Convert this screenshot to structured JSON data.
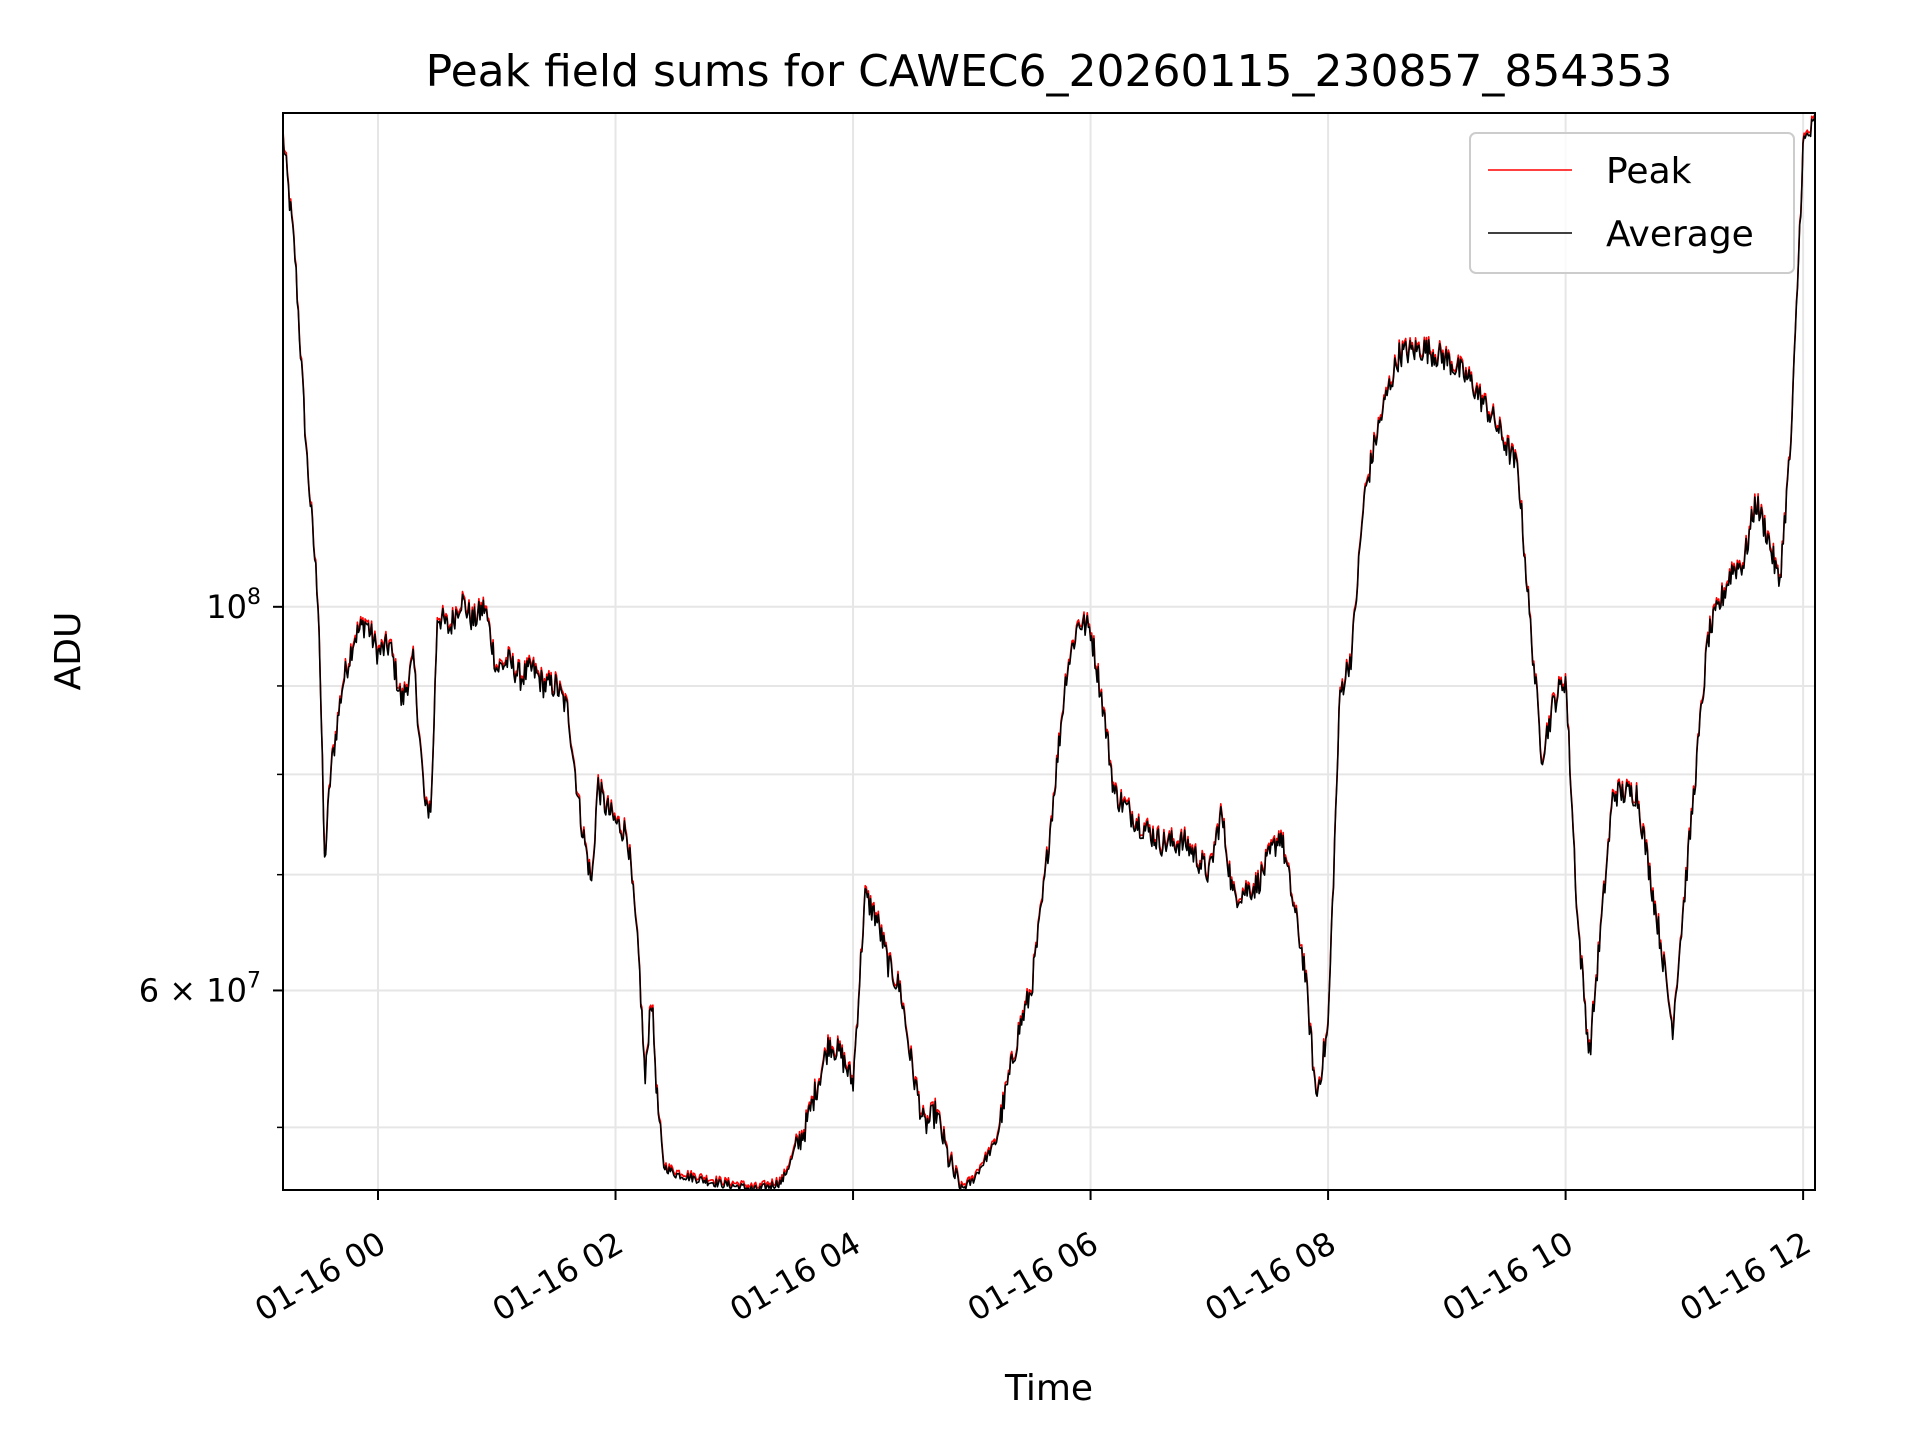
{
  "chart_data": {
    "type": "line",
    "title": "Peak field sums for CAWEC6_20260115_230857_854353",
    "xlabel": "Time",
    "ylabel": "ADU",
    "yscale": "log",
    "ylim": [
      46000000,
      193000000
    ],
    "xlim_hours": [
      -0.8,
      12.1
    ],
    "grid": true,
    "legend_position": "top-right",
    "x_ticks": [
      {
        "hour": 0,
        "label": "01-16 00"
      },
      {
        "hour": 2,
        "label": "01-16 02"
      },
      {
        "hour": 4,
        "label": "01-16 04"
      },
      {
        "hour": 6,
        "label": "01-16 06"
      },
      {
        "hour": 8,
        "label": "01-16 08"
      },
      {
        "hour": 10,
        "label": "01-16 10"
      },
      {
        "hour": 12,
        "label": "01-16 12"
      }
    ],
    "y_major_ticks": [
      {
        "value": 100000000,
        "base": "10",
        "exp": "8"
      },
      {
        "value": 60000000,
        "base": "6 × 10",
        "exp": "7"
      }
    ],
    "y_minor_ticks": [
      50000000,
      70000000,
      80000000,
      90000000
    ],
    "series": [
      {
        "name": "Peak",
        "color": "#ff0000",
        "offset_fraction": 0.004
      },
      {
        "name": "Average",
        "color": "#000000",
        "offset_fraction": 0.0
      }
    ],
    "x_hours": [
      -0.8,
      -0.7,
      -0.6,
      -0.5,
      -0.45,
      -0.4,
      -0.3,
      -0.2,
      -0.1,
      0.0,
      0.1,
      0.2,
      0.3,
      0.4,
      0.45,
      0.5,
      0.6,
      0.7,
      0.8,
      0.9,
      1.0,
      1.1,
      1.2,
      1.3,
      1.4,
      1.5,
      1.6,
      1.7,
      1.8,
      1.85,
      1.9,
      2.0,
      2.1,
      2.2,
      2.25,
      2.3,
      2.35,
      2.4,
      2.5,
      2.8,
      3.2,
      3.4,
      3.6,
      3.8,
      3.9,
      4.0,
      4.1,
      4.2,
      4.3,
      4.4,
      4.5,
      4.6,
      4.7,
      4.8,
      4.9,
      5.0,
      5.2,
      5.4,
      5.5,
      5.6,
      5.8,
      5.9,
      6.0,
      6.1,
      6.2,
      6.4,
      6.6,
      6.8,
      7.0,
      7.1,
      7.2,
      7.4,
      7.6,
      7.8,
      7.9,
      8.0,
      8.1,
      8.2,
      8.3,
      8.4,
      8.5,
      8.6,
      8.8,
      9.0,
      9.2,
      9.4,
      9.6,
      9.7,
      9.8,
      9.9,
      10.0,
      10.1,
      10.2,
      10.4,
      10.6,
      10.8,
      10.9,
      11.0,
      11.2,
      11.4,
      11.5,
      11.6,
      11.7,
      11.8,
      11.9,
      12.0,
      12.1
    ],
    "average_values": [
      187000000,
      160000000,
      122000000,
      100000000,
      71000000,
      80000000,
      90000000,
      96000000,
      98000000,
      94000000,
      95000000,
      88000000,
      93000000,
      76000000,
      77000000,
      99000000,
      97000000,
      101000000,
      98000000,
      100000000,
      92000000,
      93000000,
      91000000,
      92000000,
      90000000,
      90000000,
      87000000,
      76000000,
      69000000,
      79000000,
      77000000,
      75000000,
      74000000,
      62000000,
      53000000,
      60000000,
      52000000,
      47500000,
      47000000,
      46500000,
      46000000,
      46500000,
      50000000,
      56000000,
      55000000,
      53000000,
      68000000,
      66000000,
      62000000,
      60000000,
      54000000,
      50000000,
      51000000,
      48000000,
      46000000,
      46500000,
      49000000,
      57000000,
      60000000,
      68000000,
      92000000,
      98000000,
      97000000,
      88000000,
      78000000,
      75000000,
      73000000,
      73000000,
      70000000,
      76000000,
      68000000,
      69000000,
      74000000,
      62000000,
      52000000,
      57000000,
      89000000,
      94000000,
      115000000,
      125000000,
      133000000,
      140000000,
      141000000,
      139000000,
      135000000,
      128000000,
      120000000,
      98000000,
      82000000,
      88000000,
      91000000,
      66000000,
      55000000,
      78000000,
      78000000,
      64000000,
      57000000,
      68000000,
      96000000,
      105000000,
      106000000,
      115000000,
      110000000,
      103000000,
      125000000,
      185000000,
      190000000
    ]
  }
}
